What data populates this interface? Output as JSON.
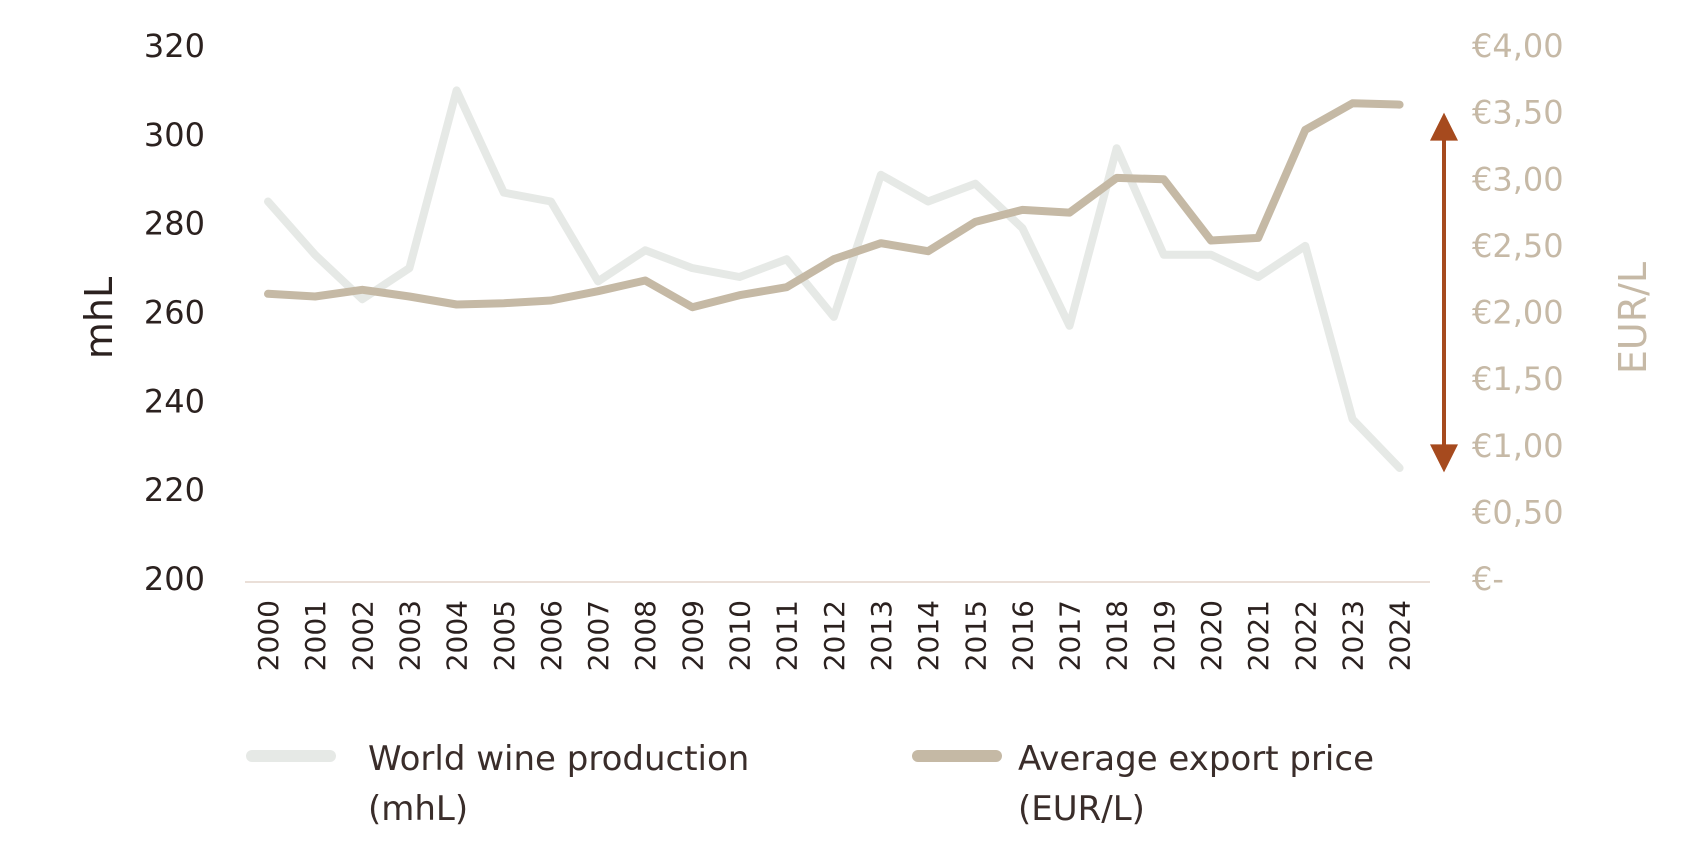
{
  "chart_data": {
    "type": "line",
    "title": "",
    "ylabel_left": "mhL",
    "ylabel_right": "EUR/L",
    "xlabel": "",
    "ylim_left": [
      200,
      320
    ],
    "ylim_right": [
      0,
      4.0
    ],
    "yticks_left": [
      {
        "value": 200,
        "label": "200"
      },
      {
        "value": 220,
        "label": "220"
      },
      {
        "value": 240,
        "label": "240"
      },
      {
        "value": 260,
        "label": "260"
      },
      {
        "value": 280,
        "label": "280"
      },
      {
        "value": 300,
        "label": "300"
      },
      {
        "value": 320,
        "label": "320"
      }
    ],
    "yticks_right": [
      {
        "value": 0,
        "label": "€-"
      },
      {
        "value": 0.5,
        "label": "€0,50"
      },
      {
        "value": 1.0,
        "label": "€1,00"
      },
      {
        "value": 1.5,
        "label": "€1,50"
      },
      {
        "value": 2.0,
        "label": "€2,00"
      },
      {
        "value": 2.5,
        "label": "€2,50"
      },
      {
        "value": 3.0,
        "label": "€3,00"
      },
      {
        "value": 3.5,
        "label": "€3,50"
      },
      {
        "value": 4.0,
        "label": "€4,00"
      }
    ],
    "categories": [
      "2000",
      "2001",
      "2002",
      "2003",
      "2004",
      "2005",
      "2006",
      "2007",
      "2008",
      "2009",
      "2010",
      "2011",
      "2012",
      "2013",
      "2014",
      "2015",
      "2016",
      "2017",
      "2018",
      "2019",
      "2020",
      "2021",
      "2022",
      "2023",
      "2024"
    ],
    "series": [
      {
        "name": "World wine production (mhL)",
        "legend_lines": [
          "World wine production",
          "(mhL)"
        ],
        "axis": "left",
        "color": "#e6e9e6",
        "values": [
          285,
          273,
          263,
          270,
          310,
          287,
          285,
          267,
          274,
          270,
          268,
          272,
          259,
          291,
          285,
          289,
          279,
          257,
          297,
          273,
          273,
          268,
          275,
          236,
          225
        ]
      },
      {
        "name": "Average export price (EUR/L)",
        "legend_lines": [
          "Average export price",
          "(EUR/L)"
        ],
        "axis": "right",
        "color": "#c5b9a5",
        "values": [
          2.14,
          2.12,
          2.17,
          2.12,
          2.06,
          2.07,
          2.09,
          2.16,
          2.24,
          2.04,
          2.13,
          2.19,
          2.4,
          2.52,
          2.46,
          2.68,
          2.77,
          2.75,
          3.01,
          3.0,
          2.54,
          2.56,
          3.37,
          3.57,
          3.56
        ]
      }
    ],
    "annotation": {
      "type": "double-arrow",
      "axis": "right",
      "from": 0.8,
      "to": 3.5,
      "color": "#a64a1e"
    },
    "grid": false,
    "legend_position": "bottom"
  }
}
